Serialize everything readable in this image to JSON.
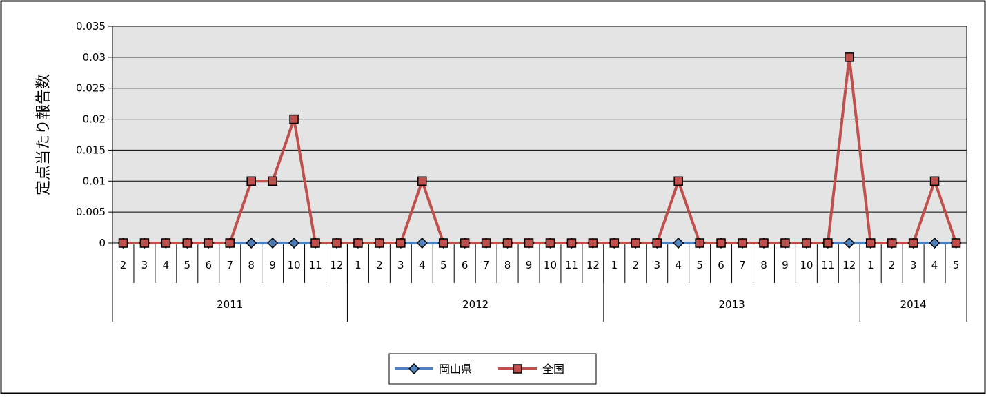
{
  "chart_data": {
    "type": "line",
    "title": "",
    "xlabel": "",
    "ylabel": "定点当たり報告数",
    "ylim": [
      0,
      0.035
    ],
    "yticks": [
      "0",
      "0.005",
      "0.01",
      "0.015",
      "0.02",
      "0.025",
      "0.03",
      "0.035"
    ],
    "grid": true,
    "legend_position": "bottom",
    "x": [
      {
        "year": "2011",
        "month": "2"
      },
      {
        "year": "2011",
        "month": "3"
      },
      {
        "year": "2011",
        "month": "4"
      },
      {
        "year": "2011",
        "month": "5"
      },
      {
        "year": "2011",
        "month": "6"
      },
      {
        "year": "2011",
        "month": "7"
      },
      {
        "year": "2011",
        "month": "8"
      },
      {
        "year": "2011",
        "month": "9"
      },
      {
        "year": "2011",
        "month": "10"
      },
      {
        "year": "2011",
        "month": "11"
      },
      {
        "year": "2011",
        "month": "12"
      },
      {
        "year": "2012",
        "month": "1"
      },
      {
        "year": "2012",
        "month": "2"
      },
      {
        "year": "2012",
        "month": "3"
      },
      {
        "year": "2012",
        "month": "4"
      },
      {
        "year": "2012",
        "month": "5"
      },
      {
        "year": "2012",
        "month": "6"
      },
      {
        "year": "2012",
        "month": "7"
      },
      {
        "year": "2012",
        "month": "8"
      },
      {
        "year": "2012",
        "month": "9"
      },
      {
        "year": "2012",
        "month": "10"
      },
      {
        "year": "2012",
        "month": "11"
      },
      {
        "year": "2012",
        "month": "12"
      },
      {
        "year": "2013",
        "month": "1"
      },
      {
        "year": "2013",
        "month": "2"
      },
      {
        "year": "2013",
        "month": "3"
      },
      {
        "year": "2013",
        "month": "4"
      },
      {
        "year": "2013",
        "month": "5"
      },
      {
        "year": "2013",
        "month": "6"
      },
      {
        "year": "2013",
        "month": "7"
      },
      {
        "year": "2013",
        "month": "8"
      },
      {
        "year": "2013",
        "month": "9"
      },
      {
        "year": "2013",
        "month": "10"
      },
      {
        "year": "2013",
        "month": "11"
      },
      {
        "year": "2013",
        "month": "12"
      },
      {
        "year": "2014",
        "month": "1"
      },
      {
        "year": "2014",
        "month": "2"
      },
      {
        "year": "2014",
        "month": "3"
      },
      {
        "year": "2014",
        "month": "4"
      },
      {
        "year": "2014",
        "month": "5"
      }
    ],
    "years": [
      "2011",
      "2012",
      "2013",
      "2014"
    ],
    "series": [
      {
        "name": "岡山県",
        "color": "#4f81bd",
        "marker": "diamond",
        "values": [
          0,
          0,
          0,
          0,
          0,
          0,
          0,
          0,
          0,
          0,
          0,
          0,
          0,
          0,
          0,
          0,
          0,
          0,
          0,
          0,
          0,
          0,
          0,
          0,
          0,
          0,
          0,
          0,
          0,
          0,
          0,
          0,
          0,
          0,
          0,
          0,
          0,
          0,
          0,
          0
        ]
      },
      {
        "name": "全国",
        "color": "#c0504d",
        "marker": "square",
        "values": [
          0,
          0,
          0,
          0,
          0,
          0,
          0.01,
          0.01,
          0.02,
          0,
          0,
          0,
          0,
          0,
          0.01,
          0,
          0,
          0,
          0,
          0,
          0,
          0,
          0,
          0,
          0,
          0,
          0.01,
          0,
          0,
          0,
          0,
          0,
          0,
          0,
          0.03,
          0,
          0,
          0,
          0.01,
          0
        ]
      }
    ]
  }
}
